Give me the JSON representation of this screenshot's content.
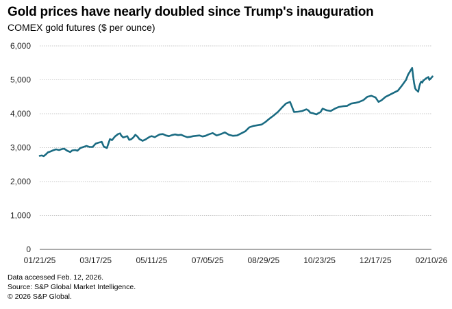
{
  "chart_data": {
    "type": "line",
    "title": "Gold prices have nearly doubled since Trump's inauguration",
    "subtitle": "COMEX gold futures ($ per ounce)",
    "xlabel": "",
    "ylabel": "",
    "ylim": [
      0,
      6000
    ],
    "yticks": [
      0,
      1000,
      2000,
      3000,
      4000,
      5000,
      6000
    ],
    "ytick_labels": [
      "0",
      "1,000",
      "2,000",
      "3,000",
      "4,000",
      "5,000",
      "6,000"
    ],
    "xtick_labels": [
      "01/21/25",
      "03/17/25",
      "05/11/25",
      "07/05/25",
      "08/29/25",
      "10/23/25",
      "12/17/25",
      "02/10/26"
    ],
    "xtick_days": [
      0,
      55,
      110,
      165,
      220,
      275,
      330,
      385
    ],
    "grid": true,
    "color": "#1a6b82",
    "series": [
      {
        "name": "COMEX gold futures",
        "x": [
          0,
          2,
          4,
          6,
          8,
          10,
          13,
          16,
          19,
          22,
          24,
          27,
          30,
          32,
          35,
          37,
          40,
          42,
          44,
          46,
          49,
          52,
          55,
          58,
          61,
          63,
          66,
          69,
          71,
          74,
          77,
          79,
          80,
          82,
          84,
          86,
          88,
          90,
          92,
          94,
          96,
          98,
          100,
          101,
          104,
          106,
          108,
          110,
          113,
          116,
          118,
          121,
          124,
          127,
          130,
          133,
          136,
          139,
          142,
          145,
          148,
          151,
          154,
          157,
          160,
          163,
          166,
          170,
          174,
          178,
          182,
          186,
          190,
          194,
          198,
          202,
          206,
          210,
          214,
          218,
          222,
          226,
          230,
          234,
          238,
          242,
          246,
          250,
          254,
          258,
          262,
          264,
          266,
          268,
          270,
          272,
          274,
          276,
          278,
          282,
          286,
          290,
          294,
          298,
          302,
          306,
          310,
          314,
          318,
          322,
          326,
          330,
          333,
          336,
          340,
          344,
          348,
          352,
          356,
          360,
          362,
          364,
          366,
          367,
          368,
          369,
          370,
          371,
          372,
          373,
          374,
          375,
          376,
          377,
          378,
          380,
          382,
          383,
          385,
          386
        ],
        "values": [
          2760,
          2770,
          2750,
          2800,
          2860,
          2880,
          2920,
          2950,
          2930,
          2960,
          2970,
          2910,
          2870,
          2920,
          2930,
          2910,
          2990,
          3010,
          3030,
          3050,
          3020,
          3020,
          3120,
          3150,
          3170,
          3030,
          2990,
          3250,
          3220,
          3330,
          3400,
          3420,
          3360,
          3300,
          3320,
          3340,
          3230,
          3250,
          3300,
          3380,
          3330,
          3250,
          3220,
          3200,
          3240,
          3280,
          3320,
          3340,
          3310,
          3360,
          3390,
          3400,
          3360,
          3340,
          3370,
          3390,
          3370,
          3380,
          3340,
          3310,
          3320,
          3340,
          3350,
          3360,
          3330,
          3350,
          3390,
          3430,
          3360,
          3400,
          3450,
          3380,
          3350,
          3360,
          3420,
          3480,
          3600,
          3640,
          3660,
          3680,
          3760,
          3860,
          3950,
          4050,
          4180,
          4300,
          4350,
          4050,
          4060,
          4080,
          4130,
          4100,
          4030,
          4020,
          4000,
          3980,
          4020,
          4050,
          4150,
          4100,
          4080,
          4150,
          4200,
          4220,
          4230,
          4300,
          4320,
          4350,
          4400,
          4500,
          4530,
          4480,
          4350,
          4400,
          4500,
          4560,
          4620,
          4680,
          4830,
          5000,
          5150,
          5250,
          5350,
          5100,
          4900,
          4750,
          4700,
          4680,
          4650,
          4800,
          4900,
          4950,
          4920,
          4980,
          5000,
          5050,
          5080,
          5000,
          5060,
          5100
        ]
      }
    ]
  },
  "footnotes": {
    "line1": "Data accessed Feb. 12, 2026.",
    "line2": "Source: S&P Global Market Intelligence.",
    "line3": "© 2026 S&P Global."
  }
}
